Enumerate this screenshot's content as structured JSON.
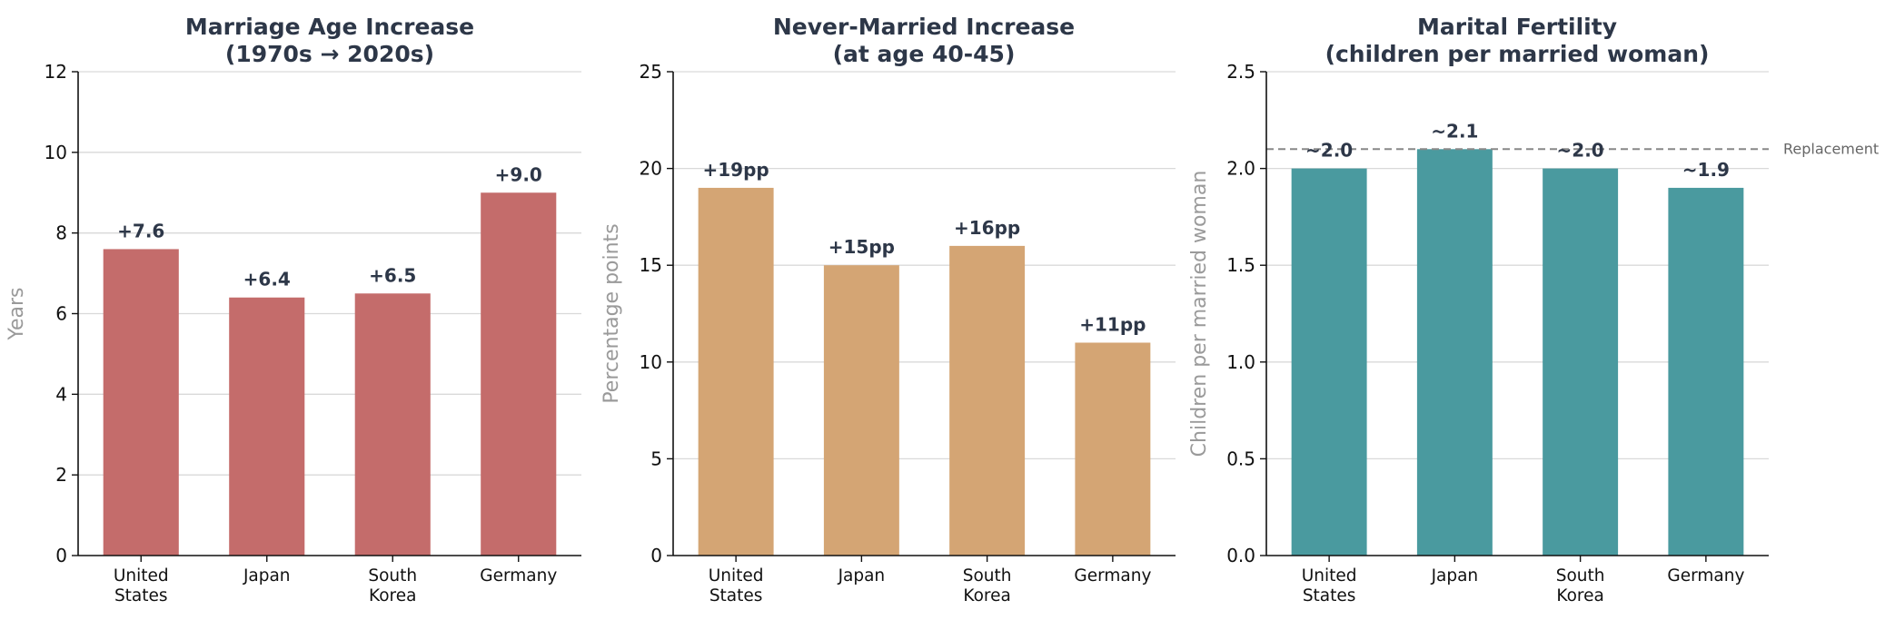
{
  "chart_data": [
    {
      "type": "bar",
      "title": [
        "Marriage Age Increase",
        "(1970s → 2020s)"
      ],
      "ylabel": "Years",
      "categories": [
        [
          "United",
          "States"
        ],
        [
          "Japan"
        ],
        [
          "South",
          "Korea"
        ],
        [
          "Germany"
        ]
      ],
      "values": [
        7.6,
        6.4,
        6.5,
        9.0
      ],
      "data_labels": [
        "+7.6",
        "+6.4",
        "+6.5",
        "+9.0"
      ],
      "ylim": [
        0,
        12
      ],
      "yticks": [
        0,
        2,
        4,
        6,
        8,
        10,
        12
      ],
      "ytick_labels": [
        "0",
        "2",
        "4",
        "6",
        "8",
        "10",
        "12"
      ],
      "color": "#c46c6b",
      "grid": "y"
    },
    {
      "type": "bar",
      "title": [
        "Never-Married Increase",
        "(at age 40-45)"
      ],
      "ylabel": "Percentage points",
      "categories": [
        [
          "United",
          "States"
        ],
        [
          "Japan"
        ],
        [
          "South",
          "Korea"
        ],
        [
          "Germany"
        ]
      ],
      "values": [
        19,
        15,
        16,
        11
      ],
      "data_labels": [
        "+19pp",
        "+15pp",
        "+16pp",
        "+11pp"
      ],
      "ylim": [
        0,
        25
      ],
      "yticks": [
        0,
        5,
        10,
        15,
        20,
        25
      ],
      "ytick_labels": [
        "0",
        "5",
        "10",
        "15",
        "20",
        "25"
      ],
      "color": "#d4a574",
      "grid": "y"
    },
    {
      "type": "bar",
      "title": [
        "Marital Fertility",
        "(children per married woman)"
      ],
      "ylabel": "Children per married woman",
      "categories": [
        [
          "United",
          "States"
        ],
        [
          "Japan"
        ],
        [
          "South",
          "Korea"
        ],
        [
          "Germany"
        ]
      ],
      "values": [
        2.0,
        2.1,
        2.0,
        1.9
      ],
      "data_labels": [
        "~2.0",
        "~2.1",
        "~2.0",
        "~1.9"
      ],
      "ylim": [
        0,
        2.5
      ],
      "yticks": [
        0,
        0.5,
        1.0,
        1.5,
        2.0,
        2.5
      ],
      "ytick_labels": [
        "0.0",
        "0.5",
        "1.0",
        "1.5",
        "2.0",
        "2.5"
      ],
      "color": "#4a9a9f",
      "grid": "y",
      "reference_line": {
        "value": 2.1,
        "label": "Replacement",
        "style": "dashed",
        "color": "#888888"
      }
    }
  ]
}
